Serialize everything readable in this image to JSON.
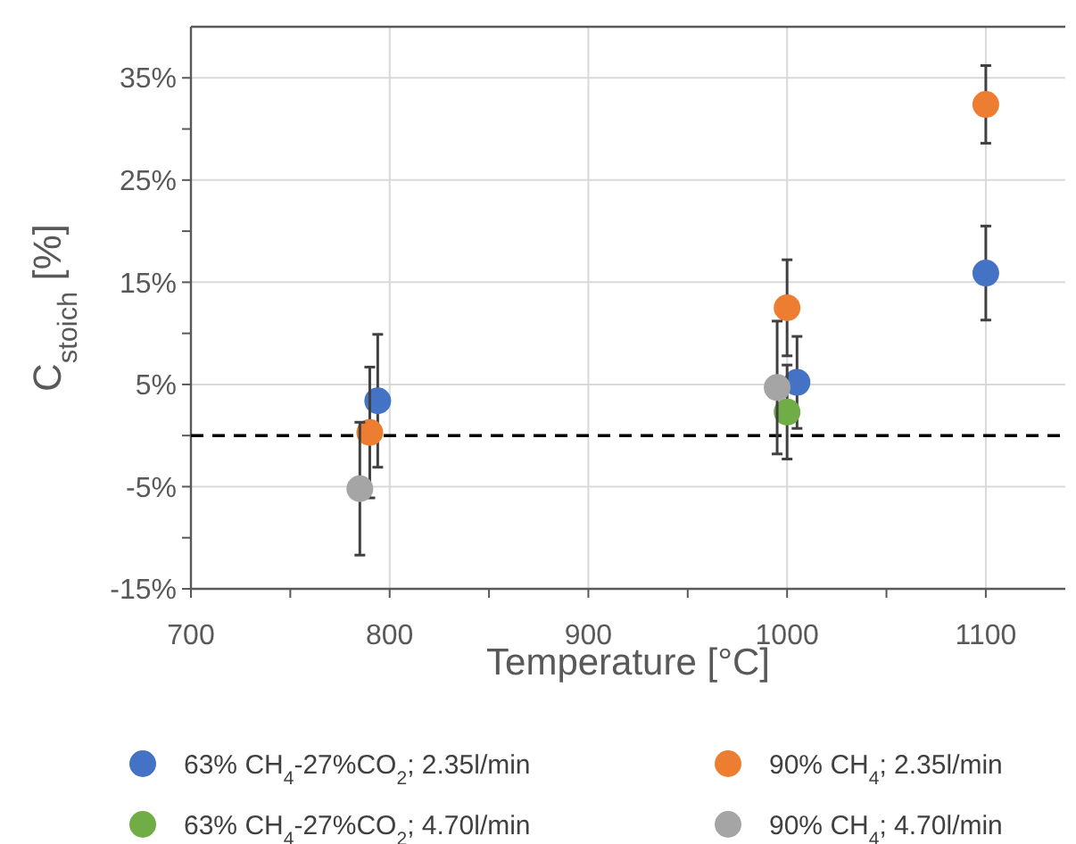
{
  "chart_data": {
    "type": "scatter",
    "xlabel": "Temperature [°C]",
    "ylabel": "C$_{stoich}$ [%]",
    "xlim": [
      700,
      1140
    ],
    "xticks": [
      700,
      {
        "value": 750,
        "label": null
      },
      800,
      {
        "value": 850,
        "label": null
      },
      900,
      {
        "value": 950,
        "label": null
      },
      1000,
      {
        "value": 1050,
        "label": null
      },
      1100
    ],
    "ylim": [
      -15,
      40
    ],
    "yticks": [
      {
        "value": -15,
        "label": "-15%"
      },
      {
        "value": -10,
        "label": null
      },
      {
        "value": -5,
        "label": "-5%"
      },
      {
        "value": 0,
        "label": null
      },
      {
        "value": 5,
        "label": "5%"
      },
      {
        "value": 10,
        "label": null
      },
      {
        "value": 15,
        "label": "15%"
      },
      {
        "value": 20,
        "label": null
      },
      {
        "value": 25,
        "label": "25%"
      },
      {
        "value": 30,
        "label": null
      },
      {
        "value": 35,
        "label": "35%"
      }
    ],
    "grid": true,
    "marker": "circle",
    "legend": "bottom",
    "ref_lines": [
      {
        "axis": "y",
        "value": 0,
        "color": "#000000",
        "line_style": "dashed"
      }
    ],
    "series": [
      {
        "name": "63% CH$_{4}$-27%CO$_{2}$; 2.35l/min",
        "color": "#4472c4",
        "x": [
          794,
          1005,
          1100
        ],
        "values": [
          3.4,
          5.2,
          15.9
        ],
        "errors": [
          6.5,
          4.5,
          4.6
        ]
      },
      {
        "name": "90% CH$_{4}$; 2.35l/min",
        "color": "#ed7d31",
        "x": [
          790,
          1000,
          1100
        ],
        "values": [
          0.3,
          12.5,
          32.4
        ],
        "errors": [
          6.4,
          4.7,
          3.8
        ]
      },
      {
        "name": "63% CH$_{4}$-27%CO$_{2}$; 4.70l/min",
        "color": "#70ad47",
        "x": [
          1000
        ],
        "values": [
          2.3
        ],
        "errors": [
          4.6
        ]
      },
      {
        "name": "90% CH$_{4}$; 4.70l/min",
        "color": "#a5a5a5",
        "x": [
          785,
          995
        ],
        "values": [
          -5.2,
          4.7
        ],
        "errors": [
          6.5,
          6.5
        ]
      }
    ]
  }
}
